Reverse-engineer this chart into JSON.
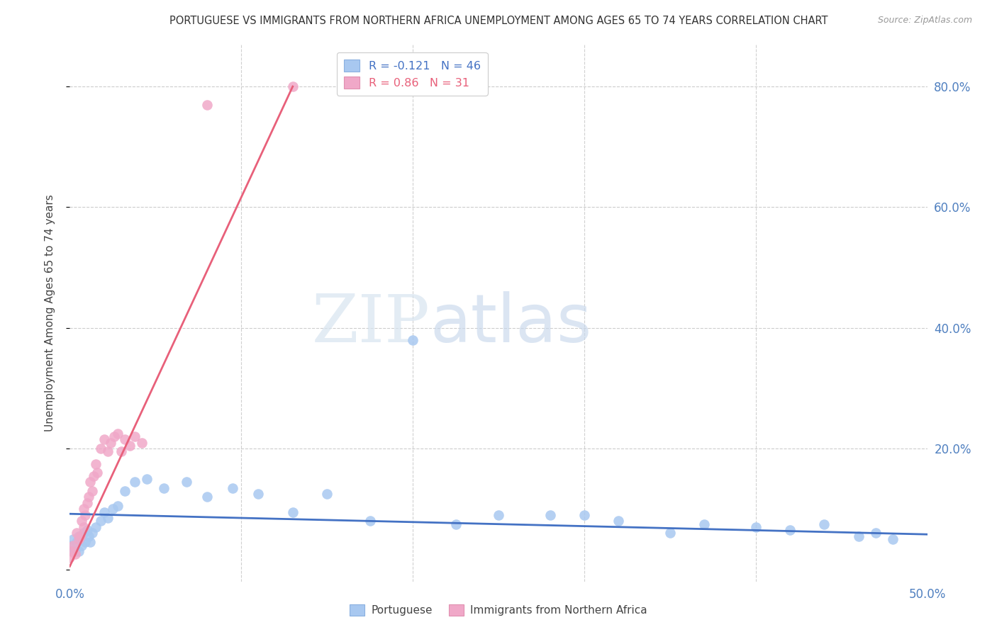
{
  "title": "PORTUGUESE VS IMMIGRANTS FROM NORTHERN AFRICA UNEMPLOYMENT AMONG AGES 65 TO 74 YEARS CORRELATION CHART",
  "source": "Source: ZipAtlas.com",
  "ylabel": "Unemployment Among Ages 65 to 74 years",
  "xlim": [
    0.0,
    0.5
  ],
  "ylim": [
    -0.02,
    0.87
  ],
  "ytick_positions": [
    0.0,
    0.2,
    0.4,
    0.6,
    0.8
  ],
  "ytick_labels_right": [
    "",
    "20.0%",
    "40.0%",
    "60.0%",
    "80.0%"
  ],
  "xtick_positions": [
    0.0,
    0.5
  ],
  "xtick_labels": [
    "0.0%",
    "50.0%"
  ],
  "background_color": "#ffffff",
  "portuguese_color": "#a8c8f0",
  "northern_africa_color": "#f0a8c8",
  "trendline_portuguese_color": "#4472c4",
  "trendline_northern_africa_color": "#e8607a",
  "R_portuguese": -0.121,
  "N_portuguese": 46,
  "R_northern_africa": 0.86,
  "N_northern_africa": 31,
  "port_x": [
    0.0,
    0.001,
    0.002,
    0.003,
    0.004,
    0.005,
    0.005,
    0.006,
    0.007,
    0.008,
    0.009,
    0.01,
    0.011,
    0.012,
    0.013,
    0.015,
    0.018,
    0.02,
    0.022,
    0.025,
    0.028,
    0.032,
    0.038,
    0.045,
    0.055,
    0.068,
    0.08,
    0.095,
    0.11,
    0.13,
    0.15,
    0.175,
    0.2,
    0.225,
    0.25,
    0.28,
    0.3,
    0.32,
    0.35,
    0.37,
    0.4,
    0.42,
    0.44,
    0.46,
    0.47,
    0.48
  ],
  "port_y": [
    0.04,
    0.03,
    0.05,
    0.03,
    0.045,
    0.055,
    0.03,
    0.05,
    0.04,
    0.06,
    0.045,
    0.065,
    0.055,
    0.045,
    0.06,
    0.07,
    0.08,
    0.095,
    0.085,
    0.1,
    0.105,
    0.13,
    0.145,
    0.15,
    0.135,
    0.145,
    0.12,
    0.135,
    0.125,
    0.095,
    0.125,
    0.08,
    0.38,
    0.075,
    0.09,
    0.09,
    0.09,
    0.08,
    0.06,
    0.075,
    0.07,
    0.065,
    0.075,
    0.055,
    0.06,
    0.05
  ],
  "na_x": [
    0.0,
    0.001,
    0.002,
    0.003,
    0.004,
    0.005,
    0.006,
    0.007,
    0.008,
    0.008,
    0.009,
    0.01,
    0.011,
    0.012,
    0.013,
    0.014,
    0.015,
    0.016,
    0.018,
    0.02,
    0.022,
    0.024,
    0.026,
    0.028,
    0.03,
    0.032,
    0.035,
    0.038,
    0.042,
    0.08,
    0.13
  ],
  "na_y": [
    0.02,
    0.03,
    0.04,
    0.025,
    0.06,
    0.05,
    0.055,
    0.08,
    0.1,
    0.07,
    0.09,
    0.11,
    0.12,
    0.145,
    0.13,
    0.155,
    0.175,
    0.16,
    0.2,
    0.215,
    0.195,
    0.21,
    0.22,
    0.225,
    0.195,
    0.215,
    0.205,
    0.22,
    0.21,
    0.77,
    0.8
  ],
  "port_trend_x": [
    0.0,
    0.5
  ],
  "port_trend_y": [
    0.092,
    0.058
  ],
  "na_trend_x": [
    0.0,
    0.13
  ],
  "na_trend_y": [
    0.005,
    0.8
  ]
}
